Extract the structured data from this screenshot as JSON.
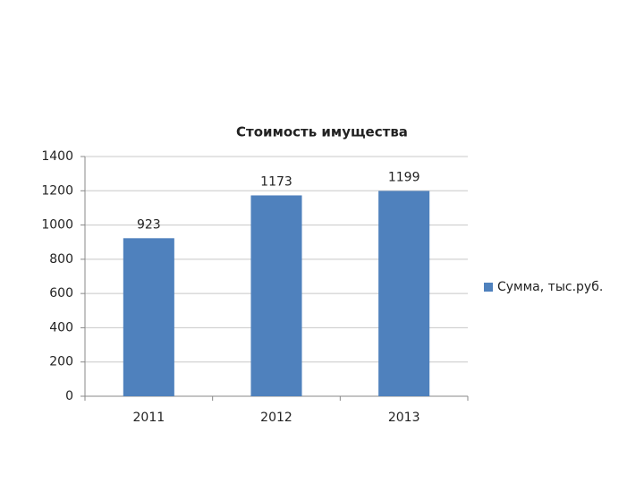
{
  "chart_data": {
    "type": "bar",
    "title": "Стоимость имущества",
    "categories": [
      "2011",
      "2012",
      "2013"
    ],
    "series": [
      {
        "name": "Сумма, тыс.руб.",
        "color": "#4f81bd",
        "values": [
          923,
          1173,
          1199
        ]
      }
    ],
    "ylim": [
      0,
      1400
    ],
    "yticks": [
      0,
      200,
      400,
      600,
      800,
      1000,
      1200,
      1400
    ],
    "grid": true,
    "legend": "right"
  }
}
